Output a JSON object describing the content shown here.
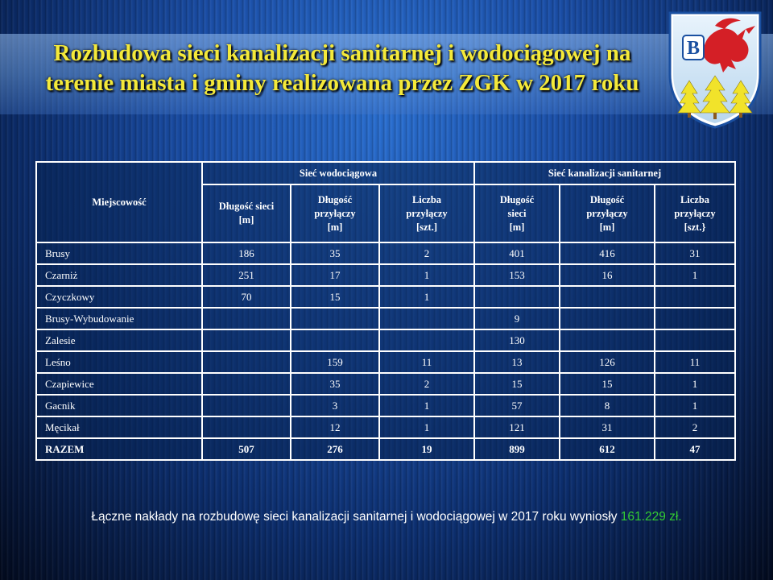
{
  "title": {
    "line1": "Rozbudowa sieci kanalizacji sanitarnej i wodociągowej na",
    "line2": "terenie miasta i gminy realizowana przez ZGK w 2017 roku"
  },
  "crest": {
    "icon": "coat-of-arms-griffin-trees",
    "letter": "B",
    "colors": {
      "shield_bg": "#d8eaf8",
      "griffin": "#d41f26",
      "trees": "#f1e32a",
      "border": "#1a4fa0"
    }
  },
  "table": {
    "location_header": "Miejscowość",
    "group_headers": [
      "Sieć wodociągowa",
      "Sieć kanalizacji  sanitarnej"
    ],
    "sub_headers": [
      [
        "Długość sieci",
        "[m]"
      ],
      [
        "Długość",
        "przyłączy",
        "[m]"
      ],
      [
        "Liczba",
        "przyłączy",
        "[szt.]"
      ],
      [
        "Długość",
        "sieci",
        "[m]"
      ],
      [
        "Długość",
        "przyłączy",
        "[m]"
      ],
      [
        "Liczba",
        "przyłączy",
        "[szt.}"
      ]
    ],
    "rows": [
      {
        "name": "Brusy",
        "values": [
          "186",
          "35",
          "2",
          "401",
          "416",
          "31"
        ]
      },
      {
        "name": "Czarniż",
        "values": [
          "251",
          "17",
          "1",
          "153",
          "16",
          "1"
        ]
      },
      {
        "name": "Czyczkowy",
        "values": [
          "70",
          "15",
          "1",
          "",
          "",
          ""
        ]
      },
      {
        "name": "Brusy-Wybudowanie",
        "values": [
          "",
          "",
          "",
          "9",
          "",
          ""
        ]
      },
      {
        "name": "Zalesie",
        "values": [
          "",
          "",
          "",
          "130",
          "",
          ""
        ]
      },
      {
        "name": "Leśno",
        "values": [
          "",
          "159",
          "11",
          "13",
          "126",
          "11"
        ]
      },
      {
        "name": "Czapiewice",
        "values": [
          "",
          "35",
          "2",
          "15",
          "15",
          "1"
        ]
      },
      {
        "name": "Gacnik",
        "values": [
          "",
          "3",
          "1",
          "57",
          "8",
          "1"
        ]
      },
      {
        "name": "Męcikał",
        "values": [
          "",
          "12",
          "1",
          "121",
          "31",
          "2"
        ]
      }
    ],
    "total": {
      "name": "RAZEM",
      "values": [
        "507",
        "276",
        "19",
        "899",
        "612",
        "47"
      ]
    }
  },
  "footer": {
    "text": "Łączne nakłady na rozbudowę sieci kanalizacji sanitarnej i wodociągowej w 2017 roku wyniosły",
    "amount": "161.229 zł."
  }
}
